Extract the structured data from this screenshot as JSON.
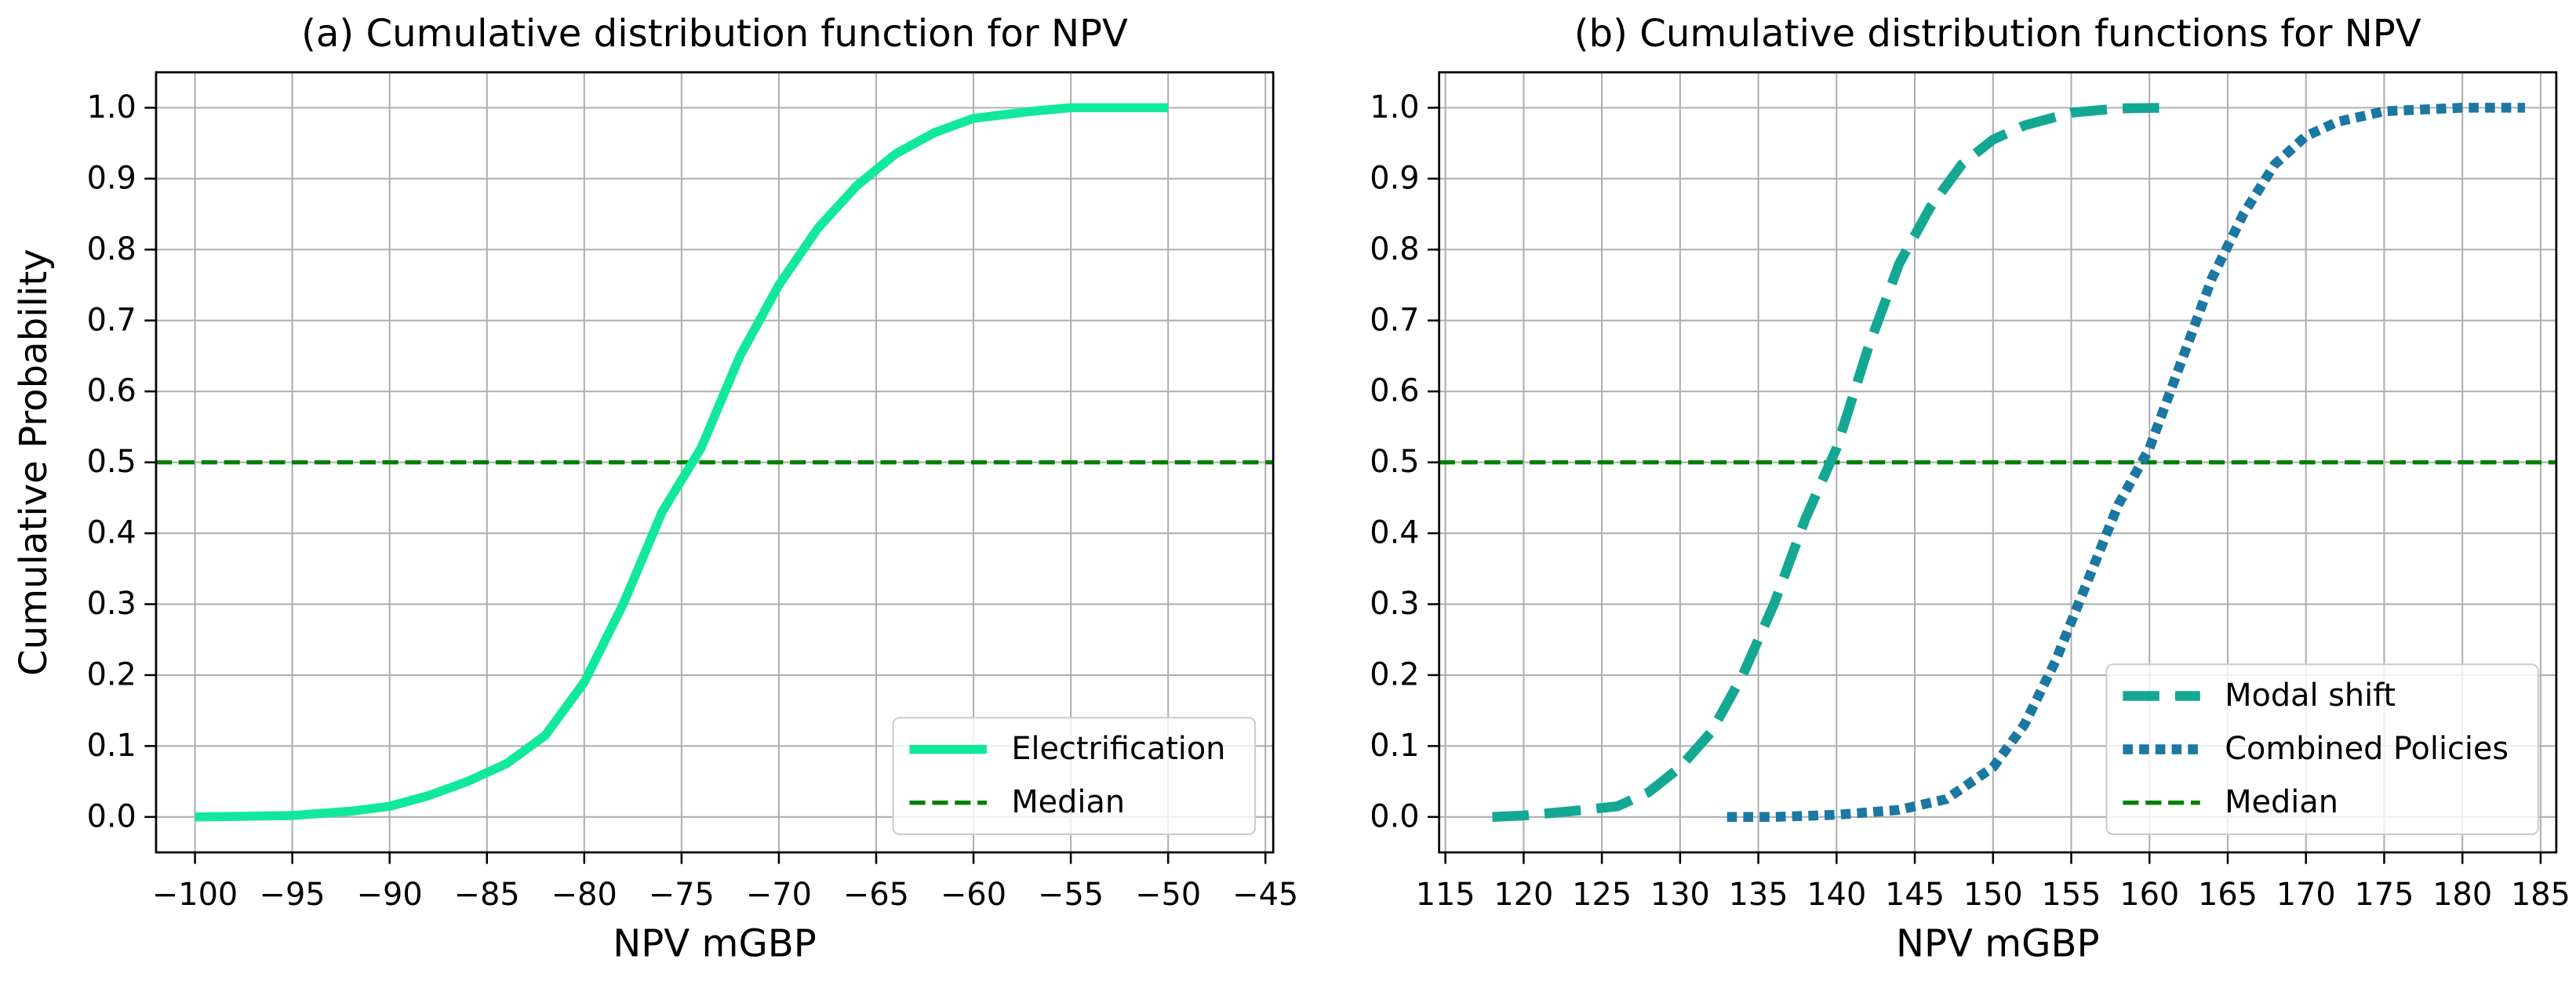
{
  "chart_data": [
    {
      "type": "line",
      "title": "(a) Cumulative distribution function for NPV",
      "x_label": "NPV mGBP",
      "y_label": "Cumulative Probability",
      "xlim": [
        -102,
        -44.6
      ],
      "ylim": [
        -0.05,
        1.05
      ],
      "xticks": [
        {
          "value": -100,
          "label": "−100"
        },
        {
          "value": -95,
          "label": "−95"
        },
        {
          "value": -90,
          "label": "−90"
        },
        {
          "value": -85,
          "label": "−85"
        },
        {
          "value": -80,
          "label": "−80"
        },
        {
          "value": -75,
          "label": "−75"
        },
        {
          "value": -70,
          "label": "−70"
        },
        {
          "value": -65,
          "label": "−65"
        },
        {
          "value": -60,
          "label": "−60"
        },
        {
          "value": -55,
          "label": "−55"
        },
        {
          "value": -50,
          "label": "−50"
        },
        {
          "value": -45,
          "label": "−45"
        }
      ],
      "yticks": [
        {
          "value": 0,
          "label": "0.0"
        },
        0.1,
        0.2,
        0.3,
        0.4,
        0.5,
        0.6,
        0.7,
        0.8,
        0.9,
        {
          "value": 1,
          "label": "1.0"
        }
      ],
      "grid": true,
      "legend": "lower right",
      "series": [
        {
          "name": "Electrification",
          "color": "#12e89c",
          "style": "solid",
          "x": [
            -100,
            -95,
            -92,
            -90,
            -88,
            -86,
            -84,
            -82,
            -80,
            -78,
            -76,
            -74,
            -72,
            -70,
            -68,
            -66,
            -64,
            -62,
            -60,
            -57,
            -55,
            -50
          ],
          "values": [
            0,
            0.002,
            0.008,
            0.015,
            0.03,
            0.05,
            0.075,
            0.115,
            0.19,
            0.3,
            0.43,
            0.52,
            0.65,
            0.75,
            0.83,
            0.89,
            0.935,
            0.965,
            0.985,
            0.995,
            1.0,
            1.0
          ]
        }
      ],
      "reference_lines": [
        {
          "name": "Median",
          "y": 0.5,
          "color": "#008000",
          "style": "dashed"
        }
      ]
    },
    {
      "type": "line",
      "title": "(b) Cumulative distribution functions for NPV",
      "x_label": "NPV mGBP",
      "xlim": [
        114.6,
        186
      ],
      "ylim": [
        -0.05,
        1.05
      ],
      "xticks": [
        115,
        120,
        125,
        130,
        135,
        140,
        145,
        150,
        155,
        160,
        165,
        170,
        175,
        180,
        185
      ],
      "yticks": [
        {
          "value": 0,
          "label": "0.0"
        },
        0.1,
        0.2,
        0.3,
        0.4,
        0.5,
        0.6,
        0.7,
        0.8,
        0.9,
        {
          "value": 1,
          "label": "1.0"
        }
      ],
      "grid": true,
      "legend": "lower right",
      "series": [
        {
          "name": "Modal shift",
          "color": "#14a894",
          "style": "dashed",
          "x": [
            118,
            120,
            123,
            126,
            128,
            130,
            132,
            134,
            136,
            138,
            140,
            142,
            144,
            146,
            148,
            150,
            152,
            155,
            158,
            161
          ],
          "values": [
            0,
            0.002,
            0.008,
            0.015,
            0.035,
            0.07,
            0.12,
            0.2,
            0.3,
            0.42,
            0.52,
            0.66,
            0.78,
            0.86,
            0.92,
            0.955,
            0.975,
            0.993,
            0.999,
            1.0
          ]
        },
        {
          "name": "Combined Policies",
          "color": "#1a78a2",
          "style": "dotted",
          "x": [
            133,
            136,
            140,
            144,
            147,
            150,
            152,
            154,
            156,
            158,
            160,
            162,
            164,
            166,
            168,
            170,
            172,
            175,
            180,
            184
          ],
          "values": [
            0,
            0,
            0.003,
            0.01,
            0.025,
            0.07,
            0.13,
            0.22,
            0.33,
            0.44,
            0.52,
            0.64,
            0.76,
            0.85,
            0.92,
            0.96,
            0.98,
            0.995,
            1.0,
            1.0
          ]
        }
      ],
      "reference_lines": [
        {
          "name": "Median",
          "y": 0.5,
          "color": "#008000",
          "style": "dashed"
        }
      ]
    }
  ]
}
